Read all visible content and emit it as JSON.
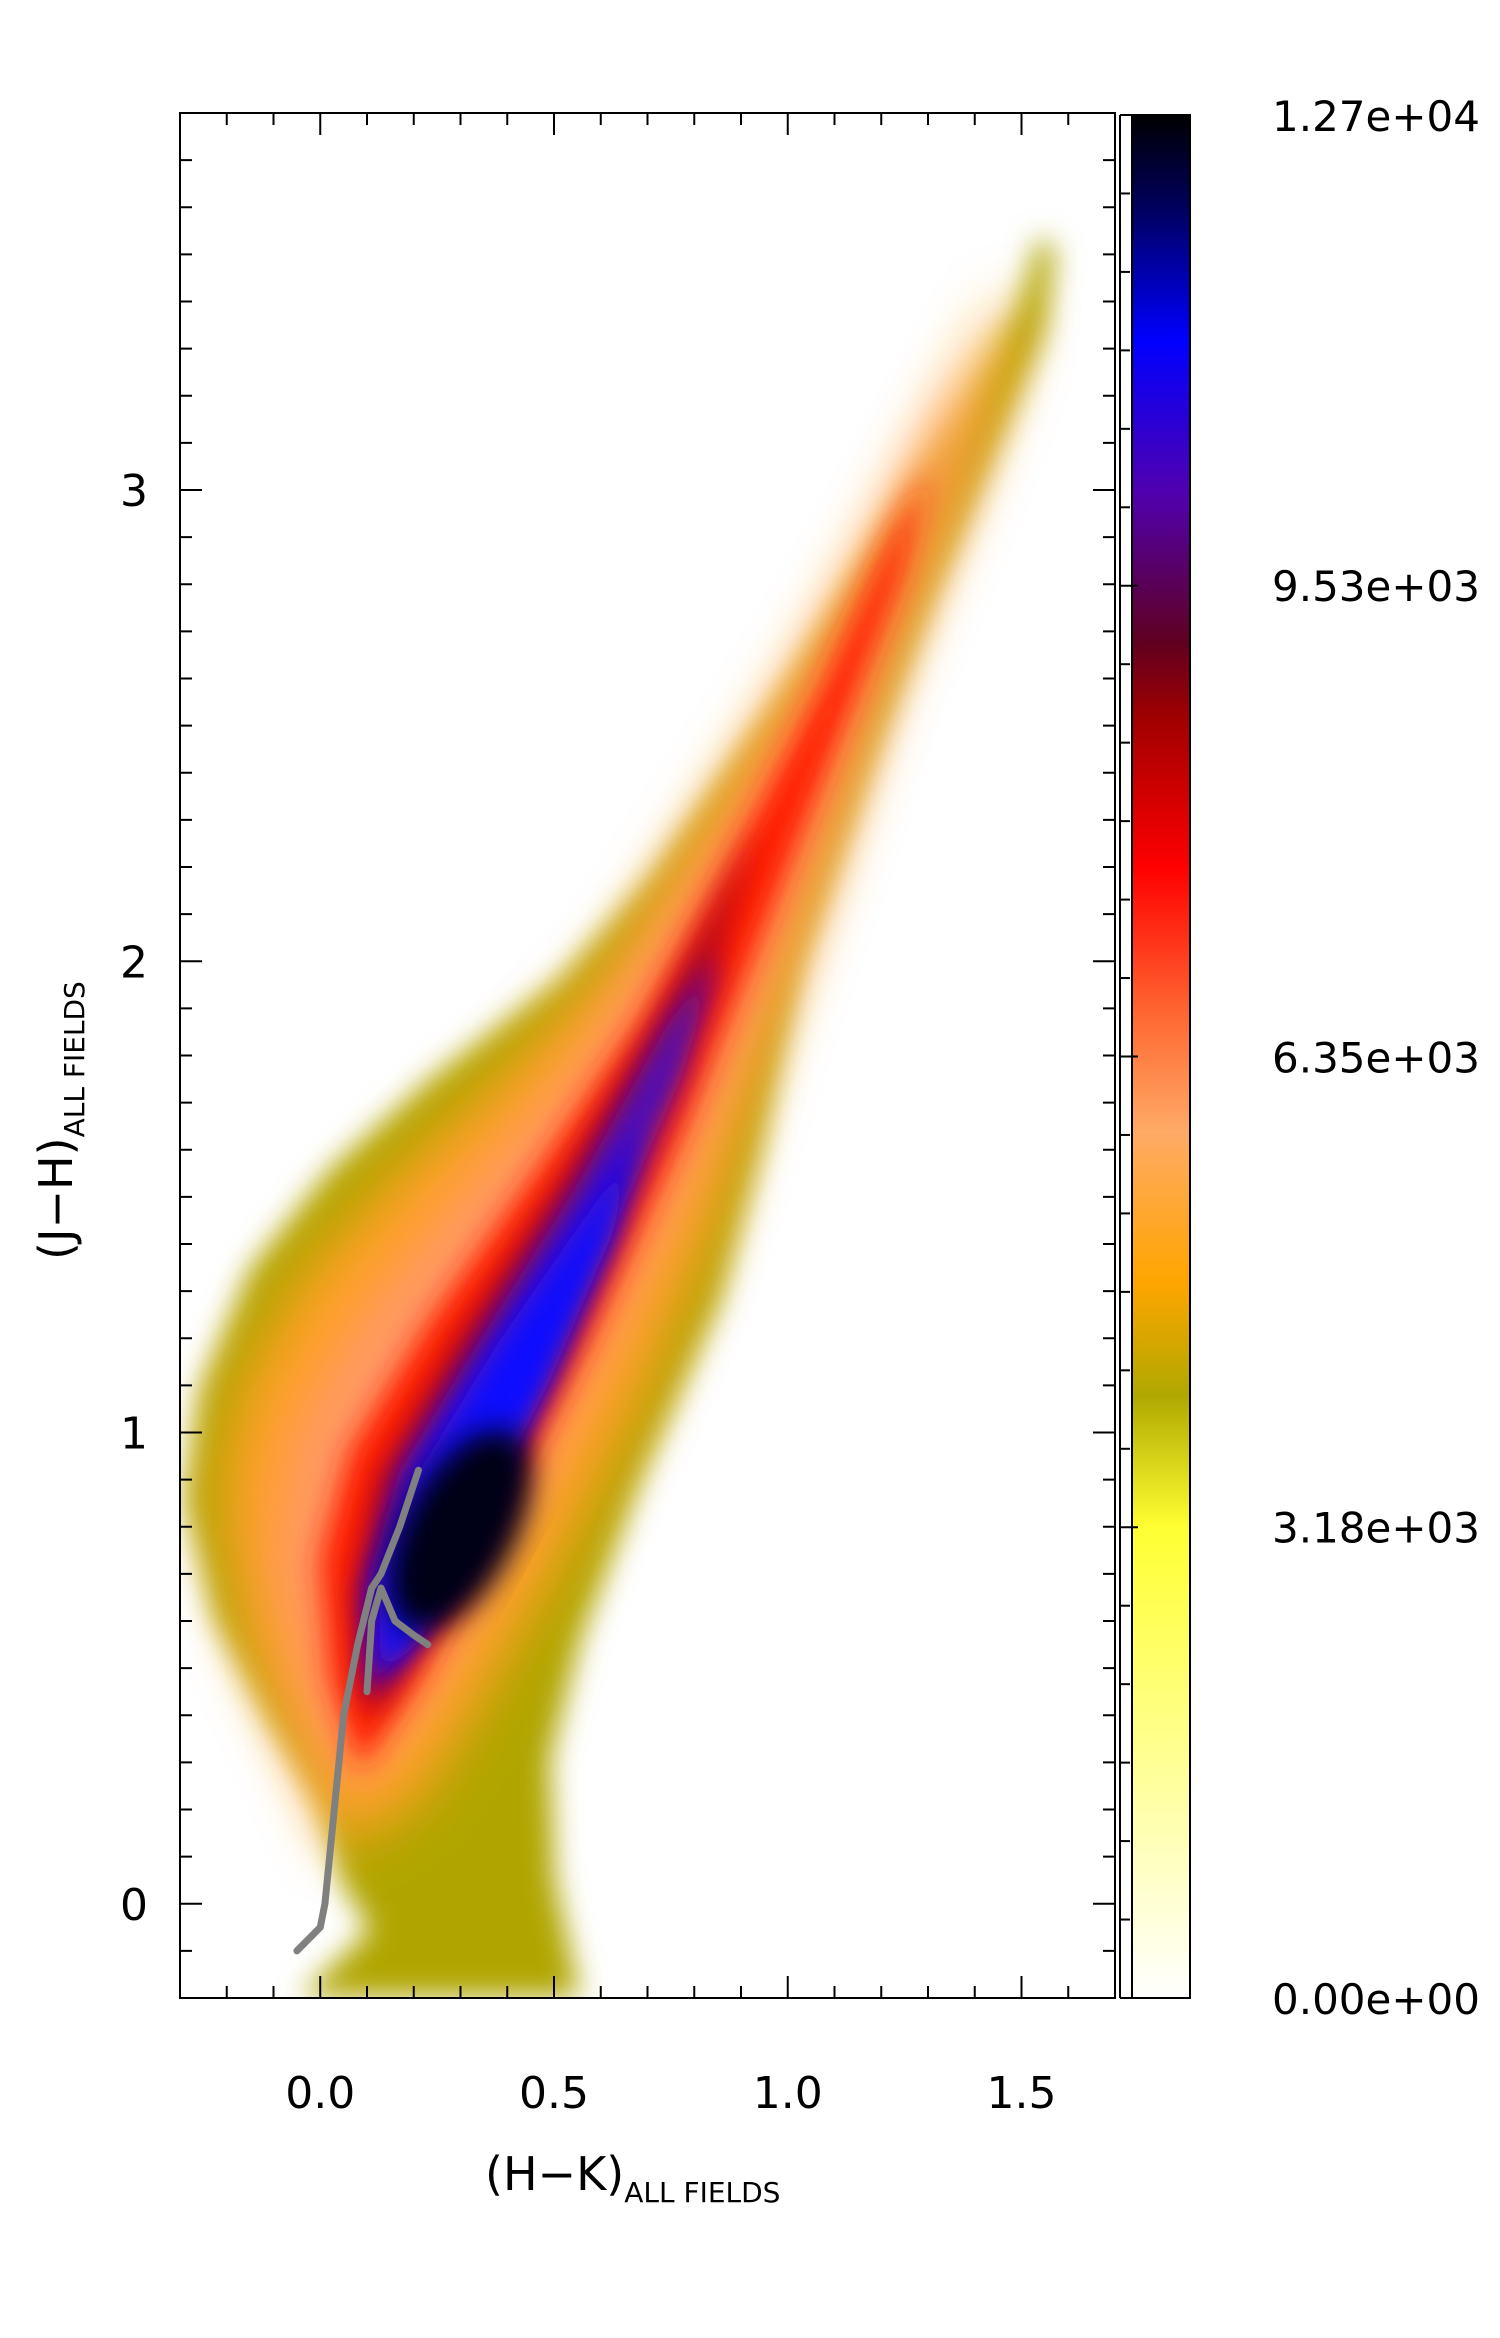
{
  "chart_data": {
    "type": "heatmap",
    "title": "",
    "xlabel": {
      "main": "(H−K)",
      "subscript": "ALL FIELDS"
    },
    "ylabel": {
      "main": "(J−H)",
      "subscript": "ALL FIELDS"
    },
    "xlim": [
      -0.3,
      1.7
    ],
    "ylim": [
      -0.2,
      3.8
    ],
    "x_ticks": [
      {
        "value": 0.0,
        "label": "0.0"
      },
      {
        "value": 0.5,
        "label": "0.5"
      },
      {
        "value": 1.0,
        "label": "1.0"
      },
      {
        "value": 1.5,
        "label": "1.5"
      }
    ],
    "y_ticks": [
      {
        "value": 0,
        "label": "0"
      },
      {
        "value": 1,
        "label": "1"
      },
      {
        "value": 2,
        "label": "2"
      },
      {
        "value": 3,
        "label": "3"
      }
    ],
    "grid": false,
    "colorbar": {
      "min": 0,
      "max": 12700,
      "tick_values": [
        0,
        3180,
        6350,
        9530,
        12700
      ],
      "tick_labels": [
        "0.00e+00",
        "3.18e+03",
        "6.35e+03",
        "9.53e+03",
        "1.27e+04"
      ],
      "colormap": [
        {
          "stop": 0.0,
          "color": "#ffffff"
        },
        {
          "stop": 0.12,
          "color": "#ffff99"
        },
        {
          "stop": 0.25,
          "color": "#ffff33"
        },
        {
          "stop": 0.32,
          "color": "#b0a800"
        },
        {
          "stop": 0.38,
          "color": "#ffa500"
        },
        {
          "stop": 0.46,
          "color": "#ffaa66"
        },
        {
          "stop": 0.52,
          "color": "#ff6a33"
        },
        {
          "stop": 0.6,
          "color": "#ff0000"
        },
        {
          "stop": 0.68,
          "color": "#a00000"
        },
        {
          "stop": 0.72,
          "color": "#600020"
        },
        {
          "stop": 0.8,
          "color": "#5000b0"
        },
        {
          "stop": 0.88,
          "color": "#0000ff"
        },
        {
          "stop": 0.95,
          "color": "#000060"
        },
        {
          "stop": 1.0,
          "color": "#000000"
        }
      ]
    },
    "density_ridge": [
      {
        "x": 0.1,
        "y": 0.3,
        "value": 7000
      },
      {
        "x": 0.18,
        "y": 0.55,
        "value": 11000
      },
      {
        "x": 0.3,
        "y": 0.8,
        "value": 12700
      },
      {
        "x": 0.45,
        "y": 1.1,
        "value": 11500
      },
      {
        "x": 0.6,
        "y": 1.5,
        "value": 9500
      },
      {
        "x": 0.8,
        "y": 2.0,
        "value": 7500
      },
      {
        "x": 1.05,
        "y": 2.5,
        "value": 6000
      },
      {
        "x": 1.3,
        "y": 3.0,
        "value": 5200
      },
      {
        "x": 1.5,
        "y": 3.4,
        "value": 3500
      }
    ],
    "overlay_curves": [
      {
        "color": "#808080",
        "points": [
          [
            -0.05,
            -0.1
          ],
          [
            0.0,
            -0.05
          ],
          [
            0.01,
            0.0
          ],
          [
            0.02,
            0.1
          ],
          [
            0.03,
            0.2
          ],
          [
            0.05,
            0.4
          ],
          [
            0.08,
            0.55
          ],
          [
            0.11,
            0.67
          ],
          [
            0.13,
            0.7
          ],
          [
            0.17,
            0.8
          ],
          [
            0.21,
            0.92
          ]
        ]
      },
      {
        "color": "#808080",
        "points": [
          [
            0.1,
            0.45
          ],
          [
            0.11,
            0.6
          ],
          [
            0.13,
            0.67
          ],
          [
            0.16,
            0.6
          ],
          [
            0.2,
            0.57
          ],
          [
            0.23,
            0.55
          ]
        ]
      }
    ]
  }
}
